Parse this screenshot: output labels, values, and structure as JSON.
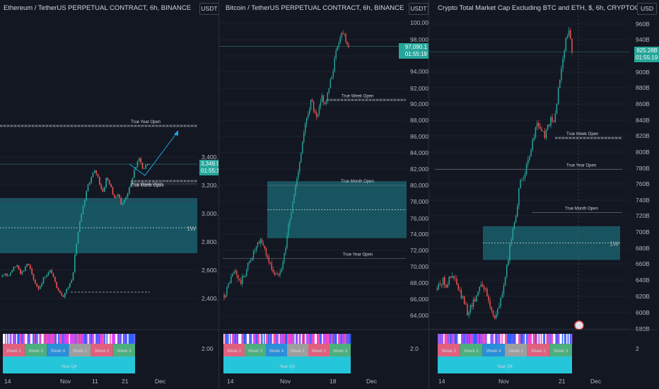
{
  "colors": {
    "bg": "#131722",
    "grid": "#1e222d",
    "up": "#26a69a",
    "down": "#ef5350",
    "zone": "#1b6e7e",
    "arrow": "#1aa7d8",
    "text": "#d1d4dc",
    "axis": "#b2b5be"
  },
  "sessions": {
    "weeks_eth": [
      "Week 2",
      "Week 3",
      "Week 4",
      "Week 1",
      "Week 2",
      "Week 3"
    ],
    "weeks_other": [
      "Week 2",
      "Week 3",
      "Week 4",
      "Week 1",
      "Week 2",
      "Week 3"
    ],
    "quarter": "Year Q4"
  },
  "panels": [
    {
      "title": "Ethereum / TetherUS PERPETUAL CONTRACT, 6h, BINANCE",
      "currency": "USDT",
      "price_tag": "3,349.91",
      "countdown": "01:55:19",
      "annotations": {
        "year_open": "True Year Open",
        "week_open": "True Week Open",
        "month_open": "True Month Open",
        "zone": "1W"
      },
      "xticks": [
        "14",
        "Nov",
        "11",
        "21",
        "Dec"
      ],
      "sub_value": "2.00"
    },
    {
      "title": "Bitcoin / TetherUS PERPETUAL CONTRACT, 6h, BINANCE",
      "currency": "USDT",
      "price_tag": "97,090.1",
      "countdown": "01:55:19",
      "annotations": {
        "week_open": "True Week Open",
        "month_open": "True Month Open",
        "year_open": "True Year Open"
      },
      "xticks": [
        "14",
        "Nov",
        "18",
        "Dec"
      ],
      "sub_value": "2.0"
    },
    {
      "title": "Crypto Total Market Cap Excluding BTC and ETH, $, 6h, CRYPTOCAP",
      "currency": "USD",
      "price_tag": "925.28B",
      "countdown": "01:55:19",
      "annotations": {
        "week_open": "True Week Open",
        "year_open": "True Year Open",
        "month_open": "True Month Open",
        "zone": "1W"
      },
      "xticks": [
        "14",
        "Nov",
        "21",
        "Dec"
      ],
      "sub_value": "2"
    }
  ],
  "chart_data": [
    {
      "type": "candlestick",
      "title": "Ethereum / TetherUS PERPETUAL CONTRACT, 6h, BINANCE",
      "yticks": [
        "3,400.00",
        "3,200.00",
        "3,000.00",
        "2,800.00",
        "2,600.00",
        "2,400.00"
      ],
      "ylim": [
        2200,
        4200
      ],
      "close_path": [
        2550,
        2580,
        2560,
        2600,
        2620,
        2640,
        2580,
        2600,
        2650,
        2620,
        2540,
        2500,
        2470,
        2520,
        2560,
        2580,
        2600,
        2520,
        2480,
        2440,
        2420,
        2460,
        2500,
        2560,
        2750,
        2900,
        3000,
        3100,
        3200,
        3250,
        3300,
        3280,
        3200,
        3150,
        3250,
        3220,
        3150,
        3100,
        3150,
        3050,
        3100,
        3150,
        3200,
        3300,
        3350,
        3400,
        3300,
        3350,
        3349.91
      ],
      "levels": {
        "true_year_open": 3620,
        "true_week_open": 3230,
        "true_month_open": 3210
      },
      "zone_1w": [
        2720,
        3080
      ],
      "last": 3349.91
    },
    {
      "type": "candlestick",
      "title": "Bitcoin / TetherUS PERPETUAL CONTRACT, 6h, BINANCE",
      "yticks": [
        "100,000.0",
        "98,000.0",
        "96,000.0",
        "94,000.0",
        "92,000.0",
        "90,000.0",
        "88,000.0",
        "86,000.0",
        "84,000.0",
        "82,000.0",
        "80,000.0",
        "78,000.0",
        "76,000.0",
        "74,000.0",
        "72,000.0",
        "70,000.0",
        "68,000.0",
        "66,000.0",
        "64,000.0"
      ],
      "ylim": [
        62500,
        101000
      ],
      "close_path": [
        66500,
        67200,
        68200,
        68800,
        69500,
        68900,
        67900,
        68600,
        69200,
        70200,
        71000,
        71600,
        72200,
        72800,
        73200,
        72500,
        71500,
        70500,
        69800,
        69200,
        68800,
        69600,
        70400,
        72000,
        74500,
        76000,
        78000,
        80000,
        82000,
        84000,
        86000,
        88000,
        89500,
        90500,
        89000,
        88000,
        89500,
        91000,
        90000,
        91000,
        92500,
        94000,
        96000,
        97500,
        98500,
        99000,
        98000,
        97090.1
      ],
      "levels": {
        "true_week_open": 90500,
        "true_month_open": 80000,
        "true_year_open": 71000
      },
      "zone": [
        73500,
        80500
      ],
      "last": 97090.1
    },
    {
      "type": "candlestick",
      "title": "Crypto Total Market Cap Excluding BTC and ETH, $, 6h, CRYPTOCAP",
      "yticks": [
        "960B",
        "940B",
        "920B",
        "900B",
        "880B",
        "860B",
        "840B",
        "820B",
        "800B",
        "780B",
        "760B",
        "740B",
        "720B",
        "700B",
        "680B",
        "660B",
        "640B",
        "620B",
        "600B",
        "580B"
      ],
      "ylim": [
        570,
        968
      ],
      "close_path": [
        630,
        638,
        640,
        635,
        642,
        645,
        640,
        628,
        620,
        612,
        600,
        608,
        615,
        622,
        638,
        635,
        625,
        612,
        600,
        595,
        605,
        620,
        640,
        660,
        690,
        710,
        730,
        760,
        770,
        780,
        790,
        810,
        830,
        835,
        828,
        820,
        830,
        840,
        835,
        860,
        890,
        920,
        940,
        950,
        925.28
      ],
      "levels": {
        "true_week_open": 818,
        "true_year_open": 779,
        "true_month_open": 725
      },
      "zone_1w": [
        666,
        708
      ],
      "last": 925.28
    }
  ]
}
